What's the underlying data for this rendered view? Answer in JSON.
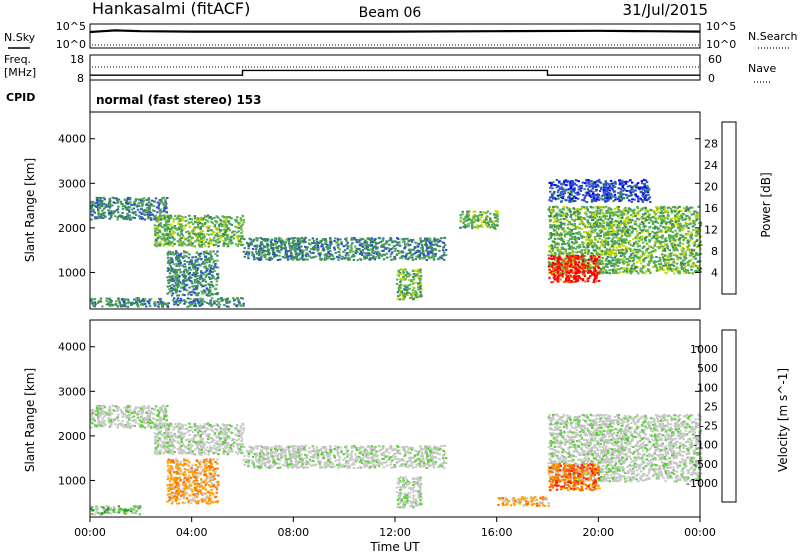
{
  "header": {
    "station": "Hankasalmi (fitACF)",
    "beam": "Beam 06",
    "date": "31/Jul/2015"
  },
  "noise_panel": {
    "left_label": "N.Sky",
    "right_label": "N.Search",
    "left_ticks": [
      "10^5",
      "10^0"
    ],
    "right_ticks": [
      "10^5",
      "10^0"
    ]
  },
  "freq_panel": {
    "left_label_line1": "Freq.",
    "left_label_line2": "[MHz]",
    "left_ticks": [
      "18",
      "8"
    ],
    "right_label": "Nave",
    "right_ticks": [
      "60",
      "0"
    ]
  },
  "cpid": {
    "label": "CPID",
    "mode_text": "normal (fast stereo) 153"
  },
  "x_axis": {
    "title": "Time UT",
    "ticks": [
      "00:00",
      "04:00",
      "08:00",
      "12:00",
      "16:00",
      "20:00",
      "00:00"
    ]
  },
  "colors": {
    "power_scale": [
      "#0000ff",
      "#3050c8",
      "#3a8a60",
      "#58b050",
      "#c8d800",
      "#ffa000",
      "#ff5000",
      "#ff0000"
    ],
    "velocity_scale": [
      "#0000d0",
      "#2a58c0",
      "#2e8a44",
      "#60cc40",
      "#c8c8c8",
      "#c8c8c8",
      "#ffa000",
      "#ff7000",
      "#ff2000",
      "#ff0000"
    ],
    "ground_scatter": "#bebebe"
  },
  "chart_data": [
    {
      "type": "heatmap",
      "name": "power",
      "ylabel": "Slant Range [km]",
      "ylim": [
        180,
        4600
      ],
      "yticks": [
        1000,
        2000,
        3000,
        4000
      ],
      "xlim_hours": [
        0,
        24
      ],
      "colorbar": {
        "label": "Power [dB]",
        "ticks": [
          "28",
          "24",
          "20",
          "16",
          "12",
          "8",
          "4"
        ]
      },
      "echo_regions": [
        {
          "t_start": 0.0,
          "t_end": 3.0,
          "range_start": 2200,
          "range_end": 2700,
          "level": 2
        },
        {
          "t_start": 2.5,
          "t_end": 6.0,
          "range_start": 1600,
          "range_end": 2300,
          "level": 3
        },
        {
          "t_start": 3.0,
          "t_end": 5.0,
          "range_start": 500,
          "range_end": 1500,
          "level": 2
        },
        {
          "t_start": 6.0,
          "t_end": 14.0,
          "range_start": 1300,
          "range_end": 1800,
          "level": 2
        },
        {
          "t_start": 12.0,
          "t_end": 13.0,
          "range_start": 400,
          "range_end": 1100,
          "level": 3
        },
        {
          "t_start": 0.0,
          "t_end": 6.0,
          "range_start": 250,
          "range_end": 450,
          "level": 2
        },
        {
          "t_start": 14.5,
          "t_end": 16.0,
          "range_start": 2000,
          "range_end": 2400,
          "level": 3
        },
        {
          "t_start": 18.0,
          "t_end": 24.0,
          "range_start": 1000,
          "range_end": 2500,
          "level": 3
        },
        {
          "t_start": 18.0,
          "t_end": 20.0,
          "range_start": 800,
          "range_end": 1400,
          "level": 7
        },
        {
          "t_start": 18.0,
          "t_end": 22.0,
          "range_start": 2600,
          "range_end": 3100,
          "level": 1
        }
      ]
    },
    {
      "type": "heatmap",
      "name": "velocity",
      "ylabel": "Slant Range [km]",
      "ylim": [
        180,
        4600
      ],
      "yticks": [
        1000,
        2000,
        3000,
        4000
      ],
      "xlim_hours": [
        0,
        24
      ],
      "colorbar": {
        "label": "Velocity [m s^-1]",
        "ticks": [
          "1000",
          "500",
          "100",
          "25",
          "-25",
          "-100",
          "-500",
          "-1000"
        ]
      },
      "echo_regions": [
        {
          "t_start": 0.0,
          "t_end": 3.0,
          "range_start": 2200,
          "range_end": 2700,
          "level": 4
        },
        {
          "t_start": 2.5,
          "t_end": 6.0,
          "range_start": 1600,
          "range_end": 2300,
          "level": 4
        },
        {
          "t_start": 3.0,
          "t_end": 5.0,
          "range_start": 500,
          "range_end": 1500,
          "level": 6
        },
        {
          "t_start": 6.0,
          "t_end": 14.0,
          "range_start": 1300,
          "range_end": 1800,
          "level": 4
        },
        {
          "t_start": 12.0,
          "t_end": 13.0,
          "range_start": 400,
          "range_end": 1100,
          "level": 4
        },
        {
          "t_start": 0.0,
          "t_end": 2.0,
          "range_start": 250,
          "range_end": 450,
          "level": 3
        },
        {
          "t_start": 18.0,
          "t_end": 24.0,
          "range_start": 1000,
          "range_end": 2500,
          "level": 4
        },
        {
          "t_start": 18.0,
          "t_end": 20.0,
          "range_start": 800,
          "range_end": 1400,
          "level": 7
        },
        {
          "t_start": 16.0,
          "t_end": 18.0,
          "range_start": 450,
          "range_end": 650,
          "level": 6
        }
      ]
    },
    {
      "type": "line",
      "name": "noise",
      "series": [
        {
          "name": "N.Sky",
          "x": [
            0.0,
            0.5,
            1.0,
            2.0,
            4.0,
            8.0,
            12.0,
            16.0,
            20.0,
            22.0,
            24.0
          ],
          "values": [
            3.5,
            3.7,
            3.9,
            3.7,
            3.6,
            3.6,
            3.6,
            3.7,
            3.8,
            3.7,
            3.6
          ]
        }
      ]
    },
    {
      "type": "line",
      "name": "frequency",
      "series": [
        {
          "name": "Freq",
          "x": [
            0,
            6,
            6,
            18,
            18,
            24
          ],
          "values": [
            10.0,
            10.0,
            12.0,
            12.0,
            10.0,
            10.0
          ]
        },
        {
          "name": "Nave",
          "x": [
            0,
            24
          ],
          "values": [
            40,
            40
          ]
        }
      ]
    }
  ]
}
